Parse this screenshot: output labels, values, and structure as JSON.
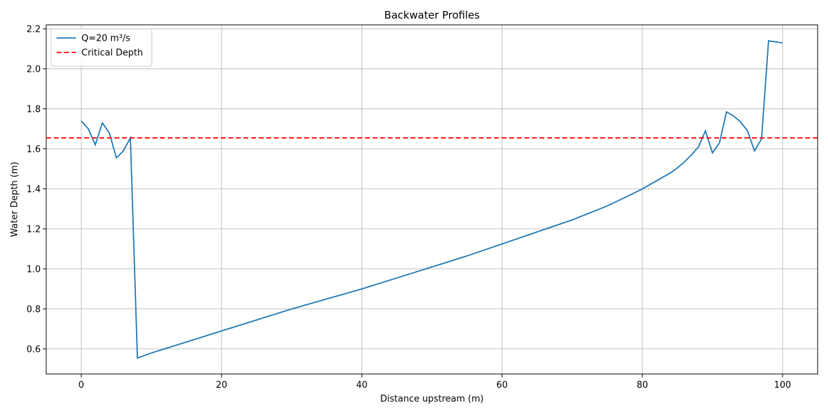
{
  "chart_data": {
    "type": "line",
    "title": "Backwater Profiles",
    "xlabel": "Distance upstream (m)",
    "ylabel": "Water Depth (m)",
    "xlim": [
      -5,
      105
    ],
    "ylim": [
      0.475,
      2.22
    ],
    "xticks": [
      0,
      20,
      40,
      60,
      80,
      100
    ],
    "yticks": [
      0.6,
      0.8,
      1.0,
      1.2,
      1.4,
      1.6,
      1.8,
      2.0,
      2.2
    ],
    "grid": true,
    "legend_position": "top-left",
    "series": [
      {
        "name": "Q=20 m³/s",
        "color": "#1f77b4",
        "style": "solid",
        "x": [
          0,
          1,
          2,
          3,
          4,
          5,
          6,
          7,
          8,
          10,
          15,
          20,
          25,
          30,
          35,
          40,
          45,
          50,
          55,
          60,
          65,
          70,
          75,
          78,
          80,
          82,
          84,
          85,
          86,
          87,
          88,
          89,
          90,
          91,
          92,
          93,
          94,
          95,
          96,
          97,
          98,
          100
        ],
        "y": [
          1.74,
          1.7,
          1.62,
          1.73,
          1.68,
          1.555,
          1.59,
          1.655,
          0.555,
          0.58,
          0.635,
          0.69,
          0.745,
          0.8,
          0.85,
          0.9,
          0.955,
          1.01,
          1.065,
          1.125,
          1.185,
          1.245,
          1.315,
          1.365,
          1.4,
          1.44,
          1.48,
          1.505,
          1.535,
          1.57,
          1.61,
          1.69,
          1.58,
          1.63,
          1.785,
          1.765,
          1.735,
          1.69,
          1.59,
          1.65,
          2.14,
          2.13
        ]
      },
      {
        "name": "Critical Depth",
        "color": "#ff0000",
        "style": "dashed",
        "x": [
          -5,
          105
        ],
        "y": [
          1.655,
          1.655
        ]
      }
    ]
  }
}
